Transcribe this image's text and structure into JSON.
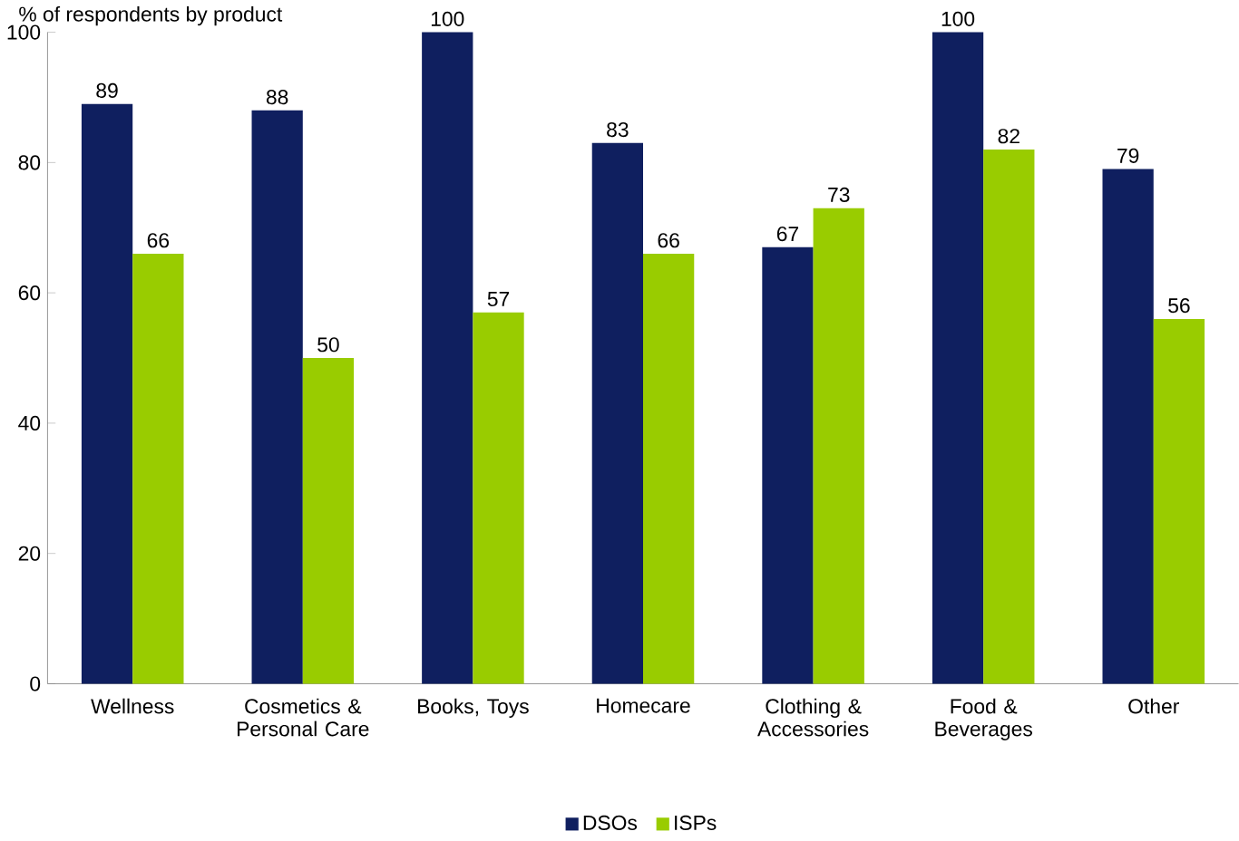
{
  "chart_data": {
    "type": "bar",
    "ylabel": "% of respondents by product",
    "categories": [
      "Wellness",
      "Cosmetics & Personal Care",
      "Books, Toys",
      "Homecare",
      "Clothing & Accessories",
      "Food & Beverages",
      "Other"
    ],
    "series": [
      {
        "name": "DSOs",
        "color": "#0f1f5f",
        "values": [
          89,
          88,
          100,
          83,
          67,
          100,
          79
        ]
      },
      {
        "name": "ISPs",
        "color": "#99cc00",
        "values": [
          66,
          50,
          57,
          66,
          73,
          82,
          56
        ]
      }
    ],
    "ylim": [
      0,
      100
    ],
    "yticks": [
      0,
      20,
      40,
      60,
      80,
      100
    ],
    "grid": false,
    "legend": "bottom",
    "data_labels": true
  }
}
